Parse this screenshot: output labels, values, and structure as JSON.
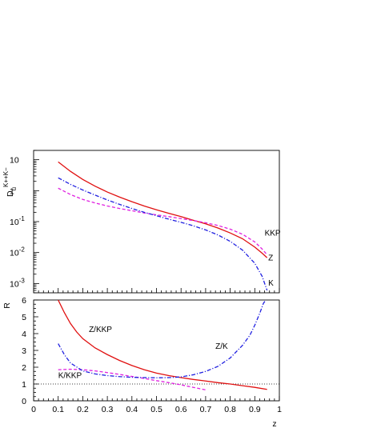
{
  "chart_data": [
    {
      "type": "line",
      "ylabel": "D_u^{K++K−}",
      "ylabel_main": "D",
      "ylabel_sub": "u",
      "ylabel_sup": "K++K−",
      "yscale": "log",
      "xlim": [
        0,
        1
      ],
      "ylim": [
        0.0005,
        20
      ],
      "ytick_labels": [
        {
          "base": "10",
          "exp": "-3",
          "value": 0.001
        },
        {
          "base": "10",
          "exp": "-2",
          "value": 0.01
        },
        {
          "base": "10",
          "exp": "-1",
          "value": 0.1
        },
        {
          "base": "1",
          "exp": "",
          "value": 1
        },
        {
          "base": "10",
          "exp": "",
          "value": 10
        }
      ],
      "annotations": [
        {
          "text": "KKP",
          "x": 0.94,
          "y": 0.035
        },
        {
          "text": "Z",
          "x": 0.955,
          "y": 0.0055
        },
        {
          "text": "K",
          "x": 0.955,
          "y": 0.00085
        }
      ],
      "series": [
        {
          "name": "Z",
          "color": "#e01010",
          "style": "solid",
          "x": [
            0.1,
            0.15,
            0.2,
            0.25,
            0.3,
            0.35,
            0.4,
            0.45,
            0.5,
            0.55,
            0.6,
            0.65,
            0.7,
            0.75,
            0.8,
            0.85,
            0.9,
            0.93,
            0.95
          ],
          "y": [
            8.5,
            4.2,
            2.3,
            1.4,
            0.9,
            0.62,
            0.44,
            0.32,
            0.24,
            0.185,
            0.145,
            0.11,
            0.085,
            0.062,
            0.043,
            0.028,
            0.015,
            0.0095,
            0.0068
          ]
        },
        {
          "name": "KKP",
          "color": "#e020e0",
          "style": "dashed",
          "x": [
            0.1,
            0.15,
            0.2,
            0.25,
            0.3,
            0.35,
            0.4,
            0.45,
            0.5,
            0.55,
            0.6,
            0.65,
            0.7,
            0.75,
            0.8,
            0.85,
            0.9,
            0.93,
            0.95
          ],
          "y": [
            1.2,
            0.75,
            0.52,
            0.4,
            0.32,
            0.265,
            0.225,
            0.19,
            0.165,
            0.145,
            0.125,
            0.108,
            0.092,
            0.075,
            0.057,
            0.039,
            0.022,
            0.013,
            0.0085
          ]
        },
        {
          "name": "K",
          "color": "#2020e0",
          "style": "dashdot",
          "x": [
            0.1,
            0.15,
            0.2,
            0.25,
            0.3,
            0.35,
            0.4,
            0.45,
            0.5,
            0.55,
            0.6,
            0.65,
            0.7,
            0.75,
            0.8,
            0.85,
            0.9,
            0.93,
            0.95
          ],
          "y": [
            2.6,
            1.6,
            1.05,
            0.72,
            0.5,
            0.36,
            0.265,
            0.2,
            0.155,
            0.12,
            0.095,
            0.073,
            0.054,
            0.037,
            0.023,
            0.012,
            0.0045,
            0.0017,
            0.0006
          ]
        }
      ]
    },
    {
      "type": "line",
      "ylabel": "R",
      "xlabel": "z",
      "xlim": [
        0,
        1
      ],
      "ylim": [
        0,
        6
      ],
      "xtick_labels": [
        "0",
        "0.1",
        "0.2",
        "0.3",
        "0.4",
        "0.5",
        "0.6",
        "0.7",
        "0.8",
        "0.9",
        "1"
      ],
      "ytick_labels": [
        "0",
        "1",
        "2",
        "3",
        "4",
        "5",
        "6"
      ],
      "reference_line": {
        "y": 1,
        "color": "#000000",
        "style": "dotted"
      },
      "annotations": [
        {
          "text": "Z/KKP",
          "x": 0.225,
          "y": 4.1
        },
        {
          "text": "Z/K",
          "x": 0.74,
          "y": 3.1
        },
        {
          "text": "K/KKP",
          "x": 0.1,
          "y": 1.35
        }
      ],
      "series": [
        {
          "name": "Z/KKP",
          "color": "#e01010",
          "style": "solid",
          "x": [
            0.1,
            0.125,
            0.15,
            0.175,
            0.2,
            0.25,
            0.3,
            0.35,
            0.4,
            0.45,
            0.5,
            0.55,
            0.6,
            0.65,
            0.7,
            0.75,
            0.8,
            0.85,
            0.9,
            0.95
          ],
          "y": [
            6.0,
            5.25,
            4.6,
            4.1,
            3.7,
            3.15,
            2.75,
            2.4,
            2.1,
            1.85,
            1.65,
            1.5,
            1.38,
            1.27,
            1.18,
            1.08,
            1.0,
            0.9,
            0.8,
            0.68
          ]
        },
        {
          "name": "K/KKP",
          "color": "#e020e0",
          "style": "dashed",
          "x": [
            0.1,
            0.15,
            0.2,
            0.25,
            0.3,
            0.35,
            0.4,
            0.45,
            0.5,
            0.55,
            0.6,
            0.65,
            0.7
          ],
          "y": [
            1.85,
            1.88,
            1.85,
            1.78,
            1.68,
            1.57,
            1.45,
            1.33,
            1.2,
            1.08,
            0.95,
            0.8,
            0.65
          ]
        },
        {
          "name": "Z/K",
          "color": "#2020e0",
          "style": "dashdot",
          "x": [
            0.1,
            0.125,
            0.15,
            0.2,
            0.25,
            0.3,
            0.35,
            0.4,
            0.45,
            0.5,
            0.55,
            0.6,
            0.65,
            0.7,
            0.75,
            0.8,
            0.85,
            0.88,
            0.9,
            0.92,
            0.935,
            0.945
          ],
          "y": [
            3.4,
            2.75,
            2.25,
            1.78,
            1.6,
            1.5,
            1.44,
            1.4,
            1.38,
            1.37,
            1.38,
            1.42,
            1.55,
            1.75,
            2.05,
            2.55,
            3.3,
            3.9,
            4.5,
            5.2,
            5.8,
            6.0
          ]
        }
      ]
    }
  ]
}
